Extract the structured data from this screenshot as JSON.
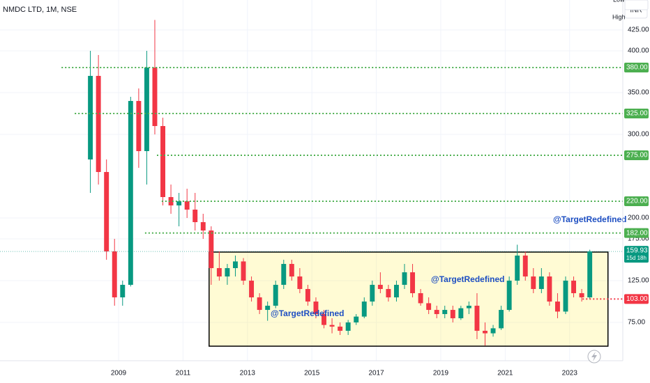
{
  "chart_data": {
    "type": "candlestick",
    "title": "NMDC LTD, 1M, NSE",
    "currency": "INR",
    "high_text": "High",
    "low_text": "Low",
    "low": [
      230,
      240,
      150,
      95,
      95,
      118,
      260,
      240,
      300,
      215,
      205,
      190,
      200,
      185,
      175,
      120,
      125,
      120,
      130,
      120,
      100,
      85,
      77,
      92,
      115,
      125,
      110,
      95,
      80,
      68,
      62,
      60,
      60,
      72,
      80,
      95,
      110,
      100,
      100,
      115,
      105,
      95,
      85,
      80,
      80,
      75,
      78,
      85,
      55,
      47.3,
      58,
      66,
      88,
      120,
      125,
      110,
      110,
      95,
      80,
      85,
      105,
      100,
      103
    ],
    "last_price": {
      "value": 159.93,
      "label": "159.93",
      "countdown": "15d 18h",
      "color": "#089981"
    },
    "xlim": [
      2005.32,
      2024.65
    ],
    "ylim": [
      29.2,
      460.8
    ],
    "xticks": [
      2009,
      2011,
      2013,
      2015,
      2017,
      2019,
      2021,
      2023
    ],
    "yticks": [
      {
        "value": 425,
        "label": "425.00"
      },
      {
        "value": 400,
        "label": "400.00"
      },
      {
        "value": 350,
        "label": "350.00"
      },
      {
        "value": 300,
        "label": "300.00"
      },
      {
        "value": 200,
        "label": "200.00"
      },
      {
        "value": 175,
        "label": "175.00"
      },
      {
        "value": 125,
        "label": "125.00"
      },
      {
        "value": 75,
        "label": "75.00"
      }
    ],
    "grid": true,
    "up_color": "#089981",
    "down_color": "#f23645",
    "levels": [
      {
        "value": 380,
        "label": "380.00",
        "start": 2007.23,
        "color": "#4caf50"
      },
      {
        "value": 325,
        "label": "325.00",
        "start": 2007.64,
        "color": "#4caf50"
      },
      {
        "value": 275,
        "label": "275.00",
        "start": 2010.19,
        "color": "#4caf50"
      },
      {
        "value": 220,
        "label": "220.00",
        "start": 2010.34,
        "color": "#4caf50"
      },
      {
        "value": 182,
        "label": "182.00",
        "start": 2009.82,
        "color": "#4caf50"
      },
      {
        "value": 103,
        "label": "103.00",
        "start": 2023.4,
        "color": "#f23645"
      }
    ],
    "box": {
      "x": [
        2011.81,
        2024.19
      ],
      "y": [
        46.6,
        159.2
      ]
    },
    "annotations": [
      "@TargetRedefined",
      "@TargetRedefined",
      "@TargetRedefined"
    ],
    "x": [
      2008.125,
      2008.375,
      2008.625,
      2008.875,
      2009.125,
      2009.375,
      2009.625,
      2009.875,
      2010.125,
      2010.375,
      2010.625,
      2010.875,
      2011.125,
      2011.375,
      2011.625,
      2011.875,
      2012.125,
      2012.375,
      2012.625,
      2012.875,
      2013.125,
      2013.375,
      2013.625,
      2013.875,
      2014.125,
      2014.375,
      2014.625,
      2014.875,
      2015.125,
      2015.375,
      2015.625,
      2015.875,
      2016.125,
      2016.375,
      2016.625,
      2016.875,
      2017.125,
      2017.375,
      2017.625,
      2017.875,
      2018.125,
      2018.375,
      2018.625,
      2018.875,
      2019.125,
      2019.375,
      2019.625,
      2019.875,
      2020.125,
      2020.375,
      2020.625,
      2020.875,
      2021.125,
      2021.375,
      2021.625,
      2021.875,
      2022.125,
      2022.375,
      2022.625,
      2022.875,
      2023.125,
      2023.375,
      2023.625
    ],
    "open": [
      270,
      370,
      255,
      160,
      105,
      120,
      340,
      280,
      380,
      310,
      225,
      215,
      220,
      210,
      195,
      185,
      140,
      130,
      140,
      148,
      125,
      105,
      90,
      95,
      120,
      145,
      130,
      115,
      100,
      85,
      72,
      70,
      65,
      75,
      82,
      100,
      120,
      115,
      105,
      120,
      135,
      110,
      98,
      90,
      85,
      90,
      80,
      92,
      95,
      65,
      62,
      68,
      90,
      125,
      155,
      130,
      115,
      130,
      100,
      88,
      125,
      110,
      105
    ],
    "high": [
      400,
      395,
      270,
      175,
      125,
      345,
      355,
      400,
      437,
      320,
      240,
      230,
      235,
      230,
      205,
      190,
      160,
      145,
      155,
      152,
      130,
      110,
      100,
      125,
      150,
      150,
      140,
      120,
      105,
      90,
      80,
      75,
      78,
      85,
      105,
      125,
      135,
      120,
      125,
      145,
      145,
      115,
      105,
      95,
      95,
      95,
      95,
      100,
      110,
      75,
      72,
      95,
      130,
      168,
      160,
      140,
      140,
      135,
      110,
      130,
      130,
      115,
      162
    ],
    "close": [
      370,
      255,
      160,
      105,
      120,
      340,
      280,
      380,
      310,
      225,
      215,
      220,
      210,
      195,
      185,
      140,
      130,
      140,
      148,
      125,
      105,
      90,
      95,
      120,
      145,
      130,
      115,
      100,
      85,
      72,
      70,
      65,
      75,
      82,
      100,
      120,
      115,
      105,
      120,
      135,
      110,
      98,
      90,
      85,
      90,
      80,
      92,
      95,
      65,
      62,
      68,
      90,
      125,
      155,
      130,
      115,
      130,
      100,
      88,
      125,
      110,
      105,
      159.93
    ]
  }
}
